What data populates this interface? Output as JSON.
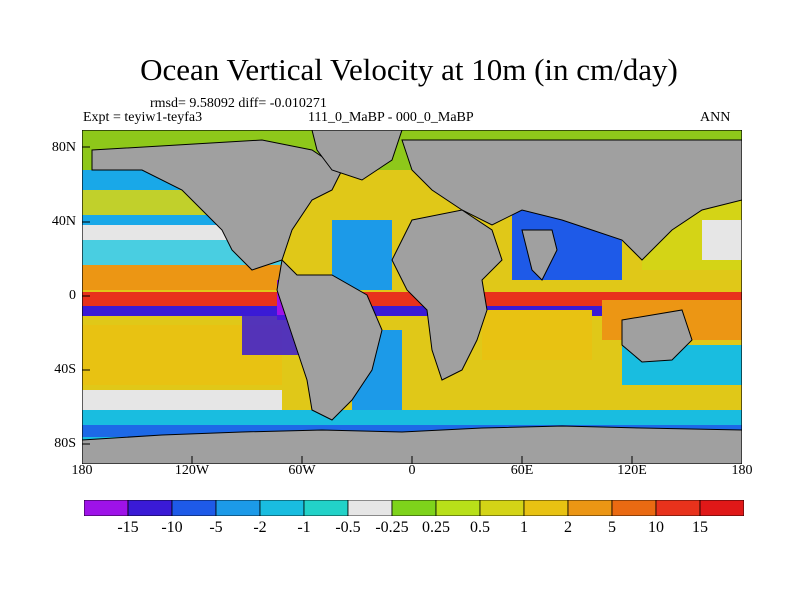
{
  "title": "Ocean Vertical Velocity at 10m (in cm/day)",
  "stats": "rmsd= 9.58092 diff= -0.010271",
  "left_label": "Expt = teyiw1-teyfa3",
  "center_label": "111_0_MaBP - 000_0_MaBP",
  "right_label": "ANN",
  "lon_labels": [
    "180",
    "120W",
    "60W",
    "0",
    "60E",
    "120E",
    "180"
  ],
  "lat_labels": [
    "80N",
    "40N",
    "0",
    "40S",
    "80S"
  ],
  "colorbar": {
    "labels": [
      "-15",
      "-10",
      "-5",
      "-2",
      "-1",
      "-0.5",
      "-0.25",
      "0.25",
      "0.5",
      "1",
      "2",
      "5",
      "10",
      "15"
    ],
    "colors": [
      "#9e12e8",
      "#3a1ad6",
      "#1e5ae8",
      "#1c9ae8",
      "#19bde0",
      "#22d2c8",
      "#e6e6e6",
      "#7ed31b",
      "#b8e019",
      "#d4d416",
      "#e8c212",
      "#ec9614",
      "#ea6a12",
      "#e8321c",
      "#e01818"
    ]
  },
  "land_color": "#a0a0a0"
}
